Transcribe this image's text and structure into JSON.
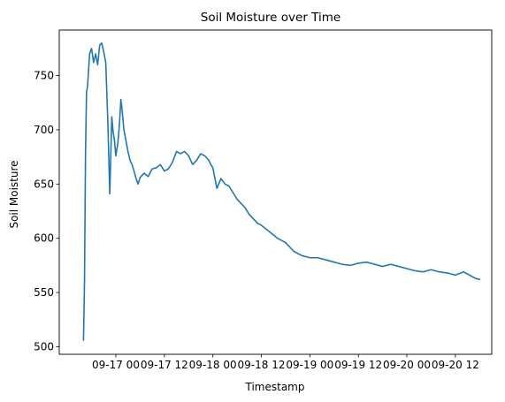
{
  "chart_data": {
    "type": "line",
    "title": "Soil Moisture over Time",
    "xlabel": "Timestamp",
    "ylabel": "Soil Moisture",
    "x_axis": {
      "kind": "datetime",
      "range": [
        "2023-09-16 10:00",
        "2023-09-20 21:00"
      ],
      "tick_values": [
        "2023-09-17 00:00",
        "2023-09-17 12:00",
        "2023-09-18 00:00",
        "2023-09-18 12:00",
        "2023-09-19 00:00",
        "2023-09-19 12:00",
        "2023-09-20 00:00",
        "2023-09-20 12:00"
      ],
      "tick_labels": [
        "09-17 00",
        "09-17 12",
        "09-18 00",
        "09-18 12",
        "09-19 00",
        "09-19 12",
        "09-20 00",
        "09-20 12"
      ]
    },
    "y_axis": {
      "range": [
        493,
        792
      ],
      "ticks": [
        500,
        550,
        600,
        650,
        700,
        750
      ]
    },
    "grid": false,
    "legend": "none",
    "series": [
      {
        "color": "#1f77b4",
        "x": [
          "2023-09-16 16:00",
          "2023-09-16 16:15",
          "2023-09-16 16:30",
          "2023-09-16 16:45",
          "2023-09-16 17:00",
          "2023-09-16 17:30",
          "2023-09-16 18:00",
          "2023-09-16 18:30",
          "2023-09-16 19:00",
          "2023-09-16 19:30",
          "2023-09-16 20:00",
          "2023-09-16 20:30",
          "2023-09-16 21:00",
          "2023-09-16 21:30",
          "2023-09-16 22:00",
          "2023-09-16 22:30",
          "2023-09-16 23:00",
          "2023-09-16 23:20",
          "2023-09-16 23:40",
          "2023-09-17 00:00",
          "2023-09-17 00:15",
          "2023-09-17 00:30",
          "2023-09-17 00:45",
          "2023-09-17 01:00",
          "2023-09-17 01:15",
          "2023-09-17 01:30",
          "2023-09-17 02:00",
          "2023-09-17 02:30",
          "2023-09-17 03:00",
          "2023-09-17 03:30",
          "2023-09-17 04:00",
          "2023-09-17 04:30",
          "2023-09-17 05:00",
          "2023-09-17 05:30",
          "2023-09-17 06:00",
          "2023-09-17 06:30",
          "2023-09-17 07:00",
          "2023-09-17 08:00",
          "2023-09-17 09:00",
          "2023-09-17 10:00",
          "2023-09-17 11:00",
          "2023-09-17 12:00",
          "2023-09-17 13:00",
          "2023-09-17 14:00",
          "2023-09-17 15:00",
          "2023-09-17 16:00",
          "2023-09-17 17:00",
          "2023-09-17 18:00",
          "2023-09-17 19:00",
          "2023-09-17 20:00",
          "2023-09-17 21:00",
          "2023-09-17 22:00",
          "2023-09-17 23:00",
          "2023-09-17 23:30",
          "2023-09-18 00:00",
          "2023-09-18 01:00",
          "2023-09-18 02:00",
          "2023-09-18 03:00",
          "2023-09-18 04:00",
          "2023-09-18 05:00",
          "2023-09-18 06:00",
          "2023-09-18 07:00",
          "2023-09-18 08:00",
          "2023-09-18 09:00",
          "2023-09-18 10:00",
          "2023-09-18 11:00",
          "2023-09-18 12:00",
          "2023-09-18 14:00",
          "2023-09-18 16:00",
          "2023-09-18 18:00",
          "2023-09-18 20:00",
          "2023-09-18 22:00",
          "2023-09-19 00:00",
          "2023-09-19 02:00",
          "2023-09-19 04:00",
          "2023-09-19 06:00",
          "2023-09-19 08:00",
          "2023-09-19 10:00",
          "2023-09-19 12:00",
          "2023-09-19 14:00",
          "2023-09-19 16:00",
          "2023-09-19 18:00",
          "2023-09-19 20:00",
          "2023-09-19 22:00",
          "2023-09-20 00:00",
          "2023-09-20 01:00",
          "2023-09-20 02:00",
          "2023-09-20 04:00",
          "2023-09-20 06:00",
          "2023-09-20 08:00",
          "2023-09-20 10:00",
          "2023-09-20 12:00",
          "2023-09-20 14:00",
          "2023-09-20 16:00",
          "2023-09-20 17:00",
          "2023-09-20 18:00"
        ],
        "y": [
          506,
          560,
          680,
          735,
          740,
          770,
          775,
          762,
          770,
          760,
          778,
          780,
          772,
          762,
          710,
          641,
          712,
          698,
          690,
          676,
          682,
          688,
          698,
          712,
          728,
          720,
          700,
          690,
          680,
          672,
          668,
          662,
          655,
          650,
          656,
          658,
          660,
          657,
          664,
          665,
          668,
          662,
          664,
          670,
          680,
          678,
          680,
          676,
          668,
          672,
          678,
          676,
          672,
          668,
          665,
          646,
          655,
          650,
          648,
          642,
          636,
          632,
          628,
          622,
          618,
          614,
          612,
          606,
          600,
          596,
          588,
          584,
          582,
          582,
          580,
          578,
          576,
          575,
          577,
          578,
          576,
          574,
          576,
          574,
          572,
          571,
          570,
          569,
          571,
          569,
          568,
          566,
          569,
          565,
          563,
          562
        ]
      }
    ]
  }
}
